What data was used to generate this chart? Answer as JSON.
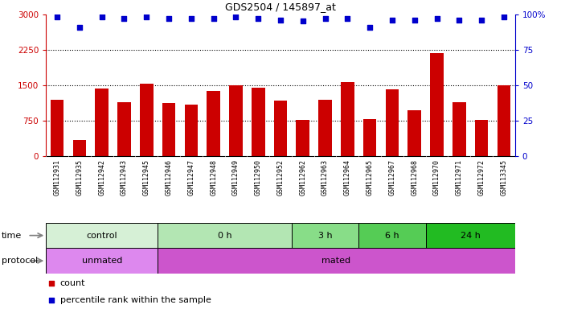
{
  "title": "GDS2504 / 145897_at",
  "samples": [
    "GSM112931",
    "GSM112935",
    "GSM112942",
    "GSM112943",
    "GSM112945",
    "GSM112946",
    "GSM112947",
    "GSM112948",
    "GSM112949",
    "GSM112950",
    "GSM112952",
    "GSM112962",
    "GSM112963",
    "GSM112964",
    "GSM112965",
    "GSM112967",
    "GSM112968",
    "GSM112970",
    "GSM112971",
    "GSM112972",
    "GSM113345"
  ],
  "counts": [
    1200,
    350,
    1430,
    1150,
    1540,
    1130,
    1100,
    1380,
    1500,
    1450,
    1180,
    770,
    1200,
    1560,
    780,
    1410,
    980,
    2180,
    1150,
    770,
    1500
  ],
  "percentile_ranks": [
    98,
    91,
    98,
    97,
    98,
    97,
    97,
    97,
    98,
    97,
    96,
    95,
    97,
    97,
    91,
    96,
    96,
    97,
    96,
    96,
    98
  ],
  "bar_color": "#cc0000",
  "dot_color": "#0000cc",
  "ylim_left": [
    0,
    3000
  ],
  "ylim_right": [
    0,
    100
  ],
  "yticks_left": [
    0,
    750,
    1500,
    2250,
    3000
  ],
  "yticks_right": [
    0,
    25,
    50,
    75,
    100
  ],
  "grid_lines": [
    750,
    1500,
    2250
  ],
  "time_groups": [
    {
      "label": "control",
      "start": 0,
      "end": 4
    },
    {
      "label": "0 h",
      "start": 5,
      "end": 10
    },
    {
      "label": "3 h",
      "start": 11,
      "end": 13
    },
    {
      "label": "6 h",
      "start": 14,
      "end": 16
    },
    {
      "label": "24 h",
      "start": 17,
      "end": 20
    }
  ],
  "time_colors": [
    "#d6f0d6",
    "#b3e6b3",
    "#88dd88",
    "#55cc55",
    "#22bb22"
  ],
  "protocol_groups": [
    {
      "label": "unmated",
      "start": 0,
      "end": 4
    },
    {
      "label": "mated",
      "start": 5,
      "end": 20
    }
  ],
  "proto_colors": [
    "#dd88ee",
    "#cc55cc"
  ],
  "label_color": "#cc0000",
  "right_label_color": "#0000cc",
  "sample_bg": "#cccccc",
  "legend_count_color": "#cc0000",
  "legend_dot_color": "#0000cc"
}
